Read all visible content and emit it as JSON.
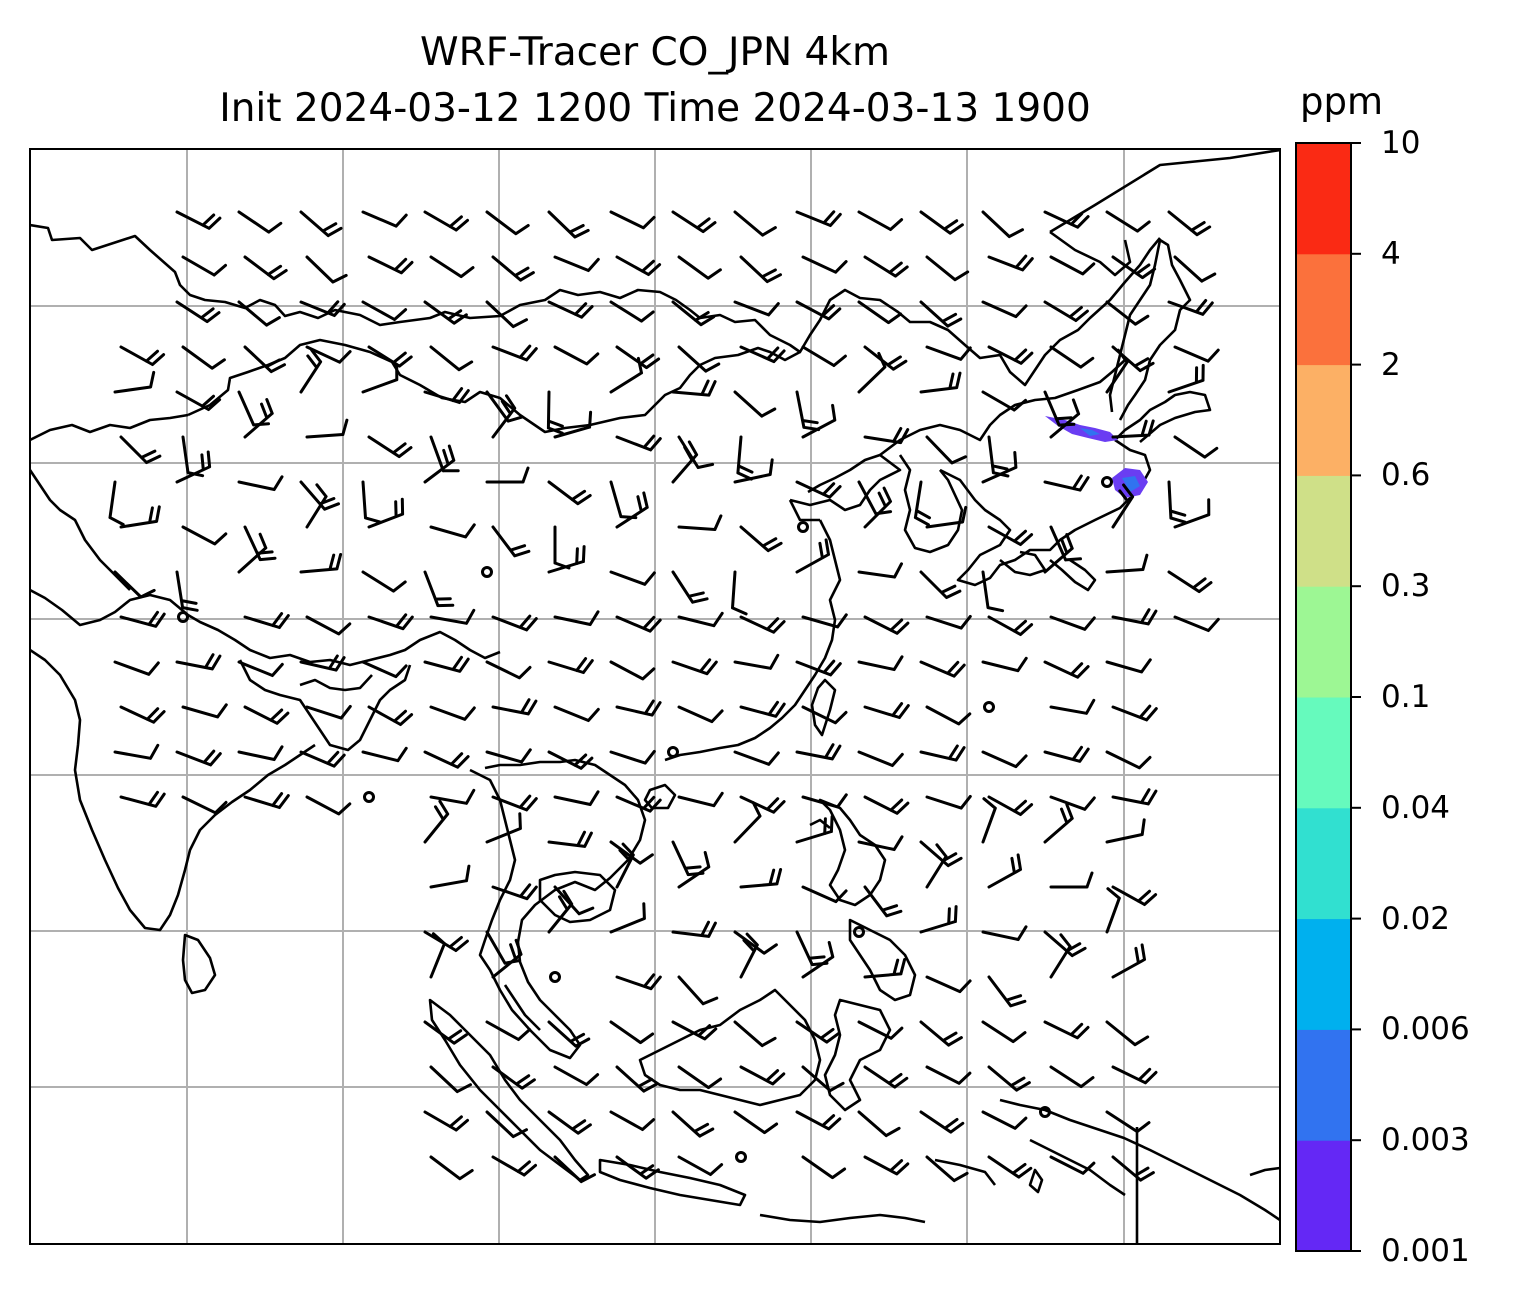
{
  "map": {
    "title_line1": "WRF-Tracer CO_JPN 4km",
    "title_line2": "Init 2024-03-12 1200 Time 2024-03-13 1900",
    "colorbar": {
      "unit": "ppm",
      "levels": [
        "0.001",
        "0.003",
        "0.006",
        "0.02",
        "0.04",
        "0.1",
        "0.3",
        "0.6",
        "2",
        "4",
        "10"
      ],
      "colors": [
        "#6428f5",
        "#3173f0",
        "#00b0ee",
        "#31e0d0",
        "#66fabd",
        "#9df794",
        "#cfe088",
        "#fcb065",
        "#fb713c",
        "#fa2a14"
      ]
    },
    "colors": {
      "coastline": "#000000",
      "gridline": "#b0b0b0",
      "barb": "#000000",
      "plume": "#6a3df2"
    },
    "gridlines": "on"
  }
}
